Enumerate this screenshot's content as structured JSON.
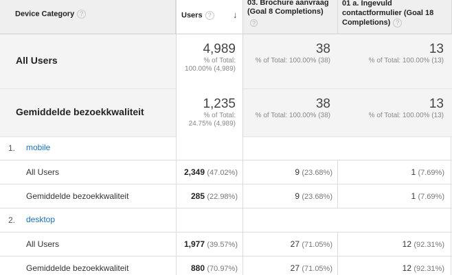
{
  "headers": {
    "device_category": "Device Category",
    "users": "Users",
    "goal8": "03. Brochure aanvraag (Goal 8 Completions)",
    "goal18": "01 a. Ingevuld contactformulier (Goal 18 Completions)",
    "help": "?",
    "sort": "↓"
  },
  "summary": [
    {
      "label": "All Users",
      "users": "4,989",
      "users_pct": "% of Total:",
      "users_pct2": "100.00% (4,989)",
      "goal8": "38",
      "goal8_pct": "% of Total: 100.00% (38)",
      "goal18": "13",
      "goal18_pct": "% of Total: 100.00% (13)"
    },
    {
      "label": "Gemiddelde bezoekkwaliteit",
      "users": "1,235",
      "users_pct": "% of Total:",
      "users_pct2": "24.75% (4,989)",
      "goal8": "38",
      "goal8_pct": "% of Total: 100.00% (38)",
      "goal18": "13",
      "goal18_pct": "% of Total: 100.00% (13)"
    }
  ],
  "groups": [
    {
      "index": "1.",
      "name": "mobile",
      "rows": [
        {
          "label": "All Users",
          "users": "2,349",
          "users_pct": "(47.02%)",
          "goal8": "9",
          "goal8_pct": "(23.68%)",
          "goal18": "1",
          "goal18_pct": "(7.69%)"
        },
        {
          "label": "Gemiddelde bezoekkwaliteit",
          "users": "285",
          "users_pct": "(22.98%)",
          "goal8": "9",
          "goal8_pct": "(23.68%)",
          "goal18": "1",
          "goal18_pct": "(7.69%)"
        }
      ]
    },
    {
      "index": "2.",
      "name": "desktop",
      "rows": [
        {
          "label": "All Users",
          "users": "1,977",
          "users_pct": "(39.57%)",
          "goal8": "27",
          "goal8_pct": "(71.05%)",
          "goal18": "12",
          "goal18_pct": "(92.31%)"
        },
        {
          "label": "Gemiddelde bezoekkwaliteit",
          "users": "880",
          "users_pct": "(70.97%)",
          "goal8": "27",
          "goal8_pct": "(71.05%)",
          "goal18": "12",
          "goal18_pct": "(92.31%)"
        }
      ]
    }
  ]
}
